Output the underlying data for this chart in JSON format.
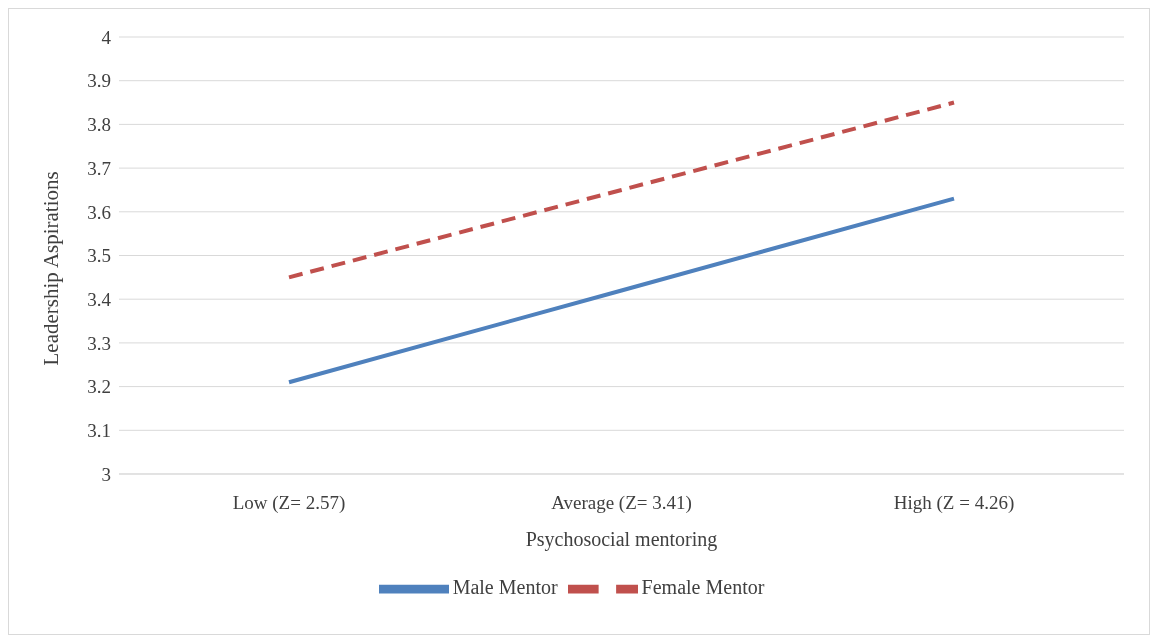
{
  "chart_data": {
    "type": "line",
    "xlabel": "Psychosocial mentoring",
    "ylabel": "Leadership Aspirations",
    "categories": [
      "Low (Z= 2.57)",
      "Average (Z= 3.41)",
      "High (Z = 4.26)"
    ],
    "series": [
      {
        "name": "Male Mentor",
        "color": "#4f81bd",
        "values": [
          3.21,
          3.42,
          3.63
        ],
        "line_style": "solid"
      },
      {
        "name": "Female Mentor",
        "color": "#c0504d",
        "values": [
          3.45,
          3.65,
          3.85
        ],
        "line_style": "dashed"
      }
    ],
    "ylim": [
      3,
      4
    ],
    "yticks": [
      3,
      3.1,
      3.2,
      3.3,
      3.4,
      3.5,
      3.6,
      3.7,
      3.8,
      3.9,
      4
    ],
    "grid": "y",
    "legend": "bottom",
    "marker": "none"
  }
}
